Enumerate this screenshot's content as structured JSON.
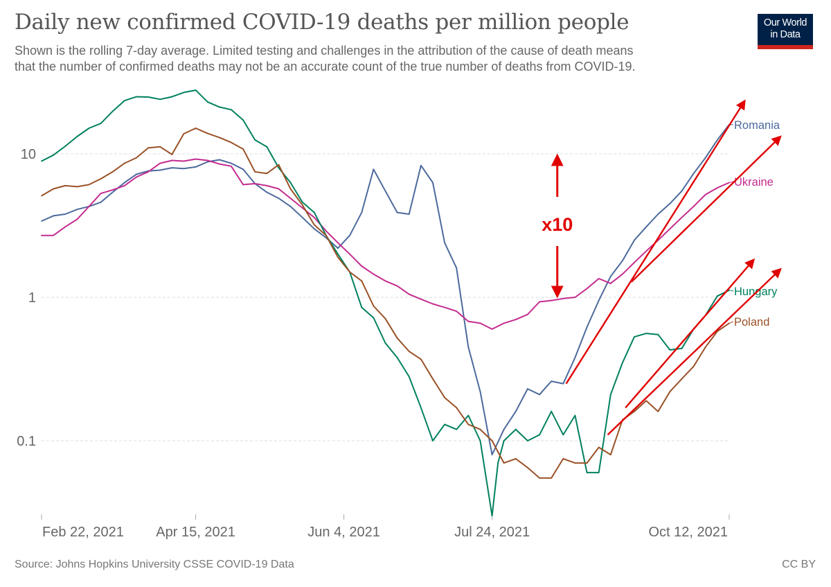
{
  "header": {
    "title": "Daily new confirmed COVID-19 deaths per million people",
    "subtitle_line1": "Shown is the rolling 7-day average. Limited testing and challenges in the attribution of the cause of death means",
    "subtitle_line2": "that the number of confirmed deaths may not be an accurate count of the true number of deaths from COVID-19.",
    "logo_line1": "Our World",
    "logo_line2": "in Data"
  },
  "footer": {
    "source": "Source: Johns Hopkins University CSSE COVID-19 Data",
    "license": "CC BY"
  },
  "colors": {
    "romania": "#4c6a9c",
    "ukraine": "#c42b8f",
    "hungary": "#00805e",
    "poland": "#9a5127",
    "annotation": "#e00000",
    "grid": "#dddddd",
    "logo_bg": "#002147",
    "logo_bar": "#ce261e"
  },
  "chart_data": {
    "type": "line",
    "title": "Daily new confirmed COVID-19 deaths per million people",
    "xlabel": "",
    "ylabel": "",
    "x_unit": "days since Feb 22, 2021",
    "y_scale": "log",
    "ylim": [
      0.03,
      25
    ],
    "xlim": [
      0,
      232
    ],
    "grid": true,
    "y_ticks": [
      {
        "value": 10,
        "label": "10"
      },
      {
        "value": 1,
        "label": "1"
      },
      {
        "value": 0.1,
        "label": "0.1"
      }
    ],
    "x_ticks": [
      {
        "value": 0,
        "label": "Feb 22, 2021"
      },
      {
        "value": 52,
        "label": "Apr 15, 2021"
      },
      {
        "value": 102,
        "label": "Jun 4, 2021"
      },
      {
        "value": 152,
        "label": "Jul 24, 2021"
      },
      {
        "value": 232,
        "label": "Oct 12, 2021"
      }
    ],
    "legend_placement": "right (inline labels at line ends)",
    "series": [
      {
        "name": "Romania",
        "color_key": "romania",
        "x": [
          0,
          4,
          8,
          12,
          16,
          20,
          24,
          28,
          32,
          36,
          40,
          44,
          48,
          52,
          56,
          60,
          64,
          68,
          72,
          76,
          80,
          84,
          88,
          92,
          96,
          100,
          104,
          108,
          112,
          116,
          120,
          124,
          128,
          132,
          136,
          140,
          144,
          148,
          152,
          156,
          160,
          164,
          168,
          172,
          176,
          180,
          184,
          188,
          192,
          196,
          200,
          204,
          208,
          212,
          216,
          220,
          224,
          228,
          232
        ],
        "y": [
          3.4,
          3.7,
          3.8,
          4.1,
          4.3,
          4.6,
          5.4,
          6.3,
          7.2,
          7.6,
          7.7,
          8.0,
          7.9,
          8.1,
          8.8,
          9.1,
          8.6,
          7.8,
          6.2,
          5.4,
          4.9,
          4.3,
          3.6,
          3.0,
          2.6,
          2.2,
          2.7,
          3.9,
          7.8,
          5.5,
          3.9,
          3.8,
          8.3,
          6.3,
          2.4,
          1.6,
          0.45,
          0.22,
          0.08,
          0.12,
          0.16,
          0.23,
          0.21,
          0.26,
          0.25,
          0.38,
          0.62,
          0.95,
          1.4,
          1.8,
          2.5,
          3.1,
          3.8,
          4.5,
          5.5,
          7.3,
          9.4,
          12.5,
          16.0
        ]
      },
      {
        "name": "Ukraine",
        "color_key": "ukraine",
        "x": [
          0,
          4,
          8,
          12,
          16,
          20,
          24,
          28,
          32,
          36,
          40,
          44,
          48,
          52,
          56,
          60,
          64,
          68,
          72,
          76,
          80,
          84,
          88,
          92,
          96,
          100,
          104,
          108,
          112,
          116,
          120,
          124,
          128,
          132,
          136,
          140,
          144,
          148,
          152,
          156,
          160,
          164,
          168,
          172,
          176,
          180,
          184,
          188,
          192,
          196,
          200,
          204,
          208,
          212,
          216,
          220,
          224,
          228,
          232
        ],
        "y": [
          2.7,
          2.7,
          3.1,
          3.5,
          4.3,
          5.3,
          5.6,
          6.0,
          6.9,
          7.5,
          8.6,
          9.0,
          8.9,
          9.2,
          9.0,
          8.5,
          8.2,
          6.1,
          6.2,
          6.0,
          5.7,
          4.9,
          4.2,
          3.6,
          2.9,
          2.4,
          2.0,
          1.65,
          1.45,
          1.3,
          1.2,
          1.05,
          0.97,
          0.9,
          0.85,
          0.8,
          0.68,
          0.66,
          0.6,
          0.66,
          0.7,
          0.76,
          0.93,
          0.95,
          0.98,
          1.0,
          1.15,
          1.35,
          1.25,
          1.45,
          1.75,
          2.1,
          2.5,
          3.0,
          3.6,
          4.3,
          5.2,
          5.8,
          6.3
        ]
      },
      {
        "name": "Hungary",
        "color_key": "hungary",
        "x": [
          0,
          4,
          8,
          12,
          16,
          20,
          24,
          28,
          32,
          36,
          40,
          44,
          48,
          52,
          56,
          60,
          64,
          68,
          72,
          76,
          80,
          84,
          88,
          92,
          96,
          100,
          104,
          108,
          112,
          116,
          120,
          124,
          128,
          132,
          136,
          140,
          144,
          148,
          152,
          154,
          156,
          160,
          164,
          168,
          172,
          176,
          180,
          184,
          188,
          192,
          196,
          200,
          204,
          208,
          212,
          216,
          220,
          224,
          228,
          232
        ],
        "y": [
          8.9,
          9.8,
          11.3,
          13.2,
          15.1,
          16.3,
          19.8,
          23.5,
          25.0,
          24.9,
          24.0,
          25.0,
          26.8,
          27.8,
          23.0,
          21.2,
          20.3,
          17.2,
          12.5,
          11.2,
          8.0,
          6.3,
          4.6,
          3.9,
          2.7,
          2.0,
          1.5,
          0.85,
          0.72,
          0.48,
          0.38,
          0.28,
          0.17,
          0.1,
          0.13,
          0.12,
          0.15,
          0.1,
          0.03,
          0.07,
          0.1,
          0.12,
          0.1,
          0.11,
          0.16,
          0.11,
          0.15,
          0.06,
          0.06,
          0.21,
          0.35,
          0.53,
          0.56,
          0.55,
          0.43,
          0.44,
          0.6,
          0.75,
          1.02,
          1.12
        ]
      },
      {
        "name": "Poland",
        "color_key": "poland",
        "x": [
          0,
          4,
          8,
          12,
          16,
          20,
          24,
          28,
          32,
          36,
          40,
          44,
          48,
          52,
          56,
          60,
          64,
          68,
          72,
          76,
          80,
          84,
          88,
          92,
          96,
          100,
          104,
          108,
          112,
          116,
          120,
          124,
          128,
          132,
          136,
          140,
          144,
          148,
          152,
          156,
          160,
          164,
          168,
          172,
          176,
          180,
          184,
          188,
          192,
          196,
          200,
          204,
          208,
          212,
          216,
          220,
          224,
          228,
          232
        ],
        "y": [
          5.1,
          5.7,
          6.0,
          5.9,
          6.1,
          6.7,
          7.5,
          8.6,
          9.4,
          11.0,
          11.2,
          9.9,
          13.8,
          15.1,
          13.9,
          13.0,
          12.0,
          10.8,
          7.5,
          7.3,
          8.4,
          5.7,
          4.4,
          3.2,
          2.7,
          1.9,
          1.5,
          1.3,
          0.87,
          0.71,
          0.52,
          0.42,
          0.37,
          0.27,
          0.2,
          0.17,
          0.13,
          0.12,
          0.1,
          0.07,
          0.075,
          0.065,
          0.055,
          0.055,
          0.075,
          0.07,
          0.07,
          0.09,
          0.08,
          0.14,
          0.16,
          0.19,
          0.16,
          0.22,
          0.27,
          0.33,
          0.45,
          0.58,
          0.66
        ]
      }
    ],
    "annotations": [
      {
        "type": "text",
        "text": "x10",
        "near": "Jul-Aug, between 1 and 10 gridlines"
      },
      {
        "type": "double-arrow",
        "from_value": 1,
        "to_value": 10,
        "x": 174
      },
      {
        "type": "trend-arrow",
        "series": "Romania",
        "from": [
          177,
          0.25
        ],
        "to": [
          237,
          23
        ]
      },
      {
        "type": "trend-arrow",
        "series": "Ukraine",
        "from": [
          199,
          1.28
        ],
        "to": [
          249,
          13
        ]
      },
      {
        "type": "trend-arrow",
        "series": "Hungary",
        "from": [
          197,
          0.17
        ],
        "to": [
          240,
          1.8
        ]
      },
      {
        "type": "trend-arrow",
        "series": "Poland",
        "from": [
          191,
          0.11
        ],
        "to": [
          249,
          1.55
        ]
      }
    ]
  }
}
